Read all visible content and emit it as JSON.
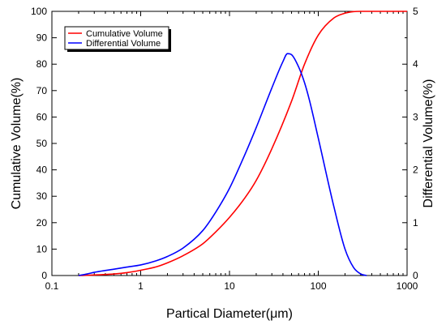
{
  "chart_data": {
    "type": "line",
    "xlabel": "Partical Diameter(μm)",
    "ylabel_left": "Cumulative Volume(%)",
    "ylabel_right": "Differential Volume(%)",
    "x_scale": "log",
    "xlim": [
      0.1,
      1000
    ],
    "ylim_left": [
      0,
      100
    ],
    "ylim_right": [
      0,
      5
    ],
    "x_ticks": [
      0.1,
      1,
      10,
      100,
      1000
    ],
    "x_tick_labels": [
      "0.1",
      "1",
      "10",
      "100",
      "1000"
    ],
    "y_left_ticks": [
      0,
      10,
      20,
      30,
      40,
      50,
      60,
      70,
      80,
      90,
      100
    ],
    "y_left_tick_labels": [
      "0",
      "10",
      "20",
      "30",
      "40",
      "50",
      "60",
      "70",
      "80",
      "90",
      "100"
    ],
    "y_right_ticks": [
      0,
      1,
      2,
      3,
      4,
      5
    ],
    "y_right_tick_labels": [
      "0",
      "1",
      "2",
      "3",
      "4",
      "5"
    ],
    "grid": false,
    "legend_position": "top-left",
    "series": [
      {
        "name": "Cumulative Volume",
        "axis": "left",
        "color": "#ff0000",
        "x": [
          0.2,
          0.3,
          0.5,
          0.7,
          1,
          1.5,
          2,
          3,
          5,
          7,
          10,
          15,
          20,
          30,
          50,
          70,
          100,
          150,
          200,
          250,
          300,
          500,
          1000
        ],
        "y": [
          0,
          0.2,
          0.6,
          1.1,
          2,
          3.3,
          4.8,
          7.5,
          12,
          16.5,
          22,
          29.5,
          36,
          48,
          66,
          80,
          91,
          97.5,
          99.3,
          99.9,
          100,
          100,
          100
        ]
      },
      {
        "name": "Differential Volume",
        "axis": "right",
        "color": "#0000ff",
        "x": [
          0.2,
          0.25,
          0.3,
          0.5,
          0.7,
          1,
          1.5,
          2,
          3,
          5,
          7,
          10,
          15,
          20,
          30,
          40,
          45,
          50,
          60,
          70,
          80,
          100,
          150,
          200,
          250,
          300,
          350
        ],
        "y": [
          0,
          0.03,
          0.06,
          0.12,
          0.16,
          0.2,
          0.28,
          0.36,
          0.52,
          0.85,
          1.2,
          1.65,
          2.3,
          2.8,
          3.55,
          4.05,
          4.2,
          4.18,
          3.95,
          3.65,
          3.3,
          2.6,
          1.3,
          0.5,
          0.15,
          0.03,
          0
        ]
      }
    ]
  }
}
